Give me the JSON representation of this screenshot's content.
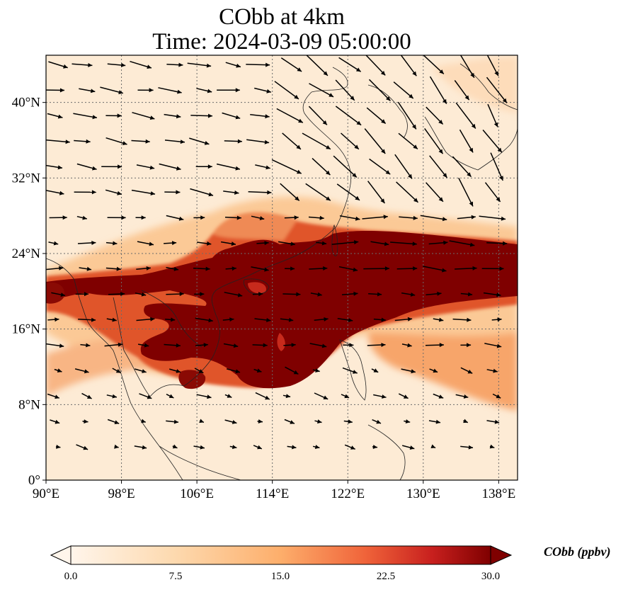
{
  "title": {
    "line1": "CObb at 4km",
    "line2": "Time: 2024-03-09 05:00:00"
  },
  "map": {
    "lon_range": [
      90,
      140
    ],
    "lat_range": [
      0,
      45
    ],
    "lon_ticks": [
      {
        "value": 90,
        "label": "90°E"
      },
      {
        "value": 98,
        "label": "98°E"
      },
      {
        "value": 106,
        "label": "106°E"
      },
      {
        "value": 114,
        "label": "114°E"
      },
      {
        "value": 122,
        "label": "122°E"
      },
      {
        "value": 130,
        "label": "130°E"
      },
      {
        "value": 138,
        "label": "138°E"
      }
    ],
    "lat_ticks": [
      {
        "value": 0,
        "label": "0°"
      },
      {
        "value": 8,
        "label": "8°N"
      },
      {
        "value": 16,
        "label": "16°N"
      },
      {
        "value": 24,
        "label": "24°N"
      },
      {
        "value": 32,
        "label": "32°N"
      },
      {
        "value": 40,
        "label": "40°N"
      }
    ],
    "gridlines": "dotted",
    "coastlines": true,
    "wind_vectors": true
  },
  "colorbar": {
    "title": "CObb (ppbv)",
    "min": 0,
    "max": 30,
    "extend": "both",
    "colormap": [
      "#fff5eb",
      "#fdd9ae",
      "#fdae6b",
      "#f0643a",
      "#c8201e",
      "#7f0000"
    ],
    "ticks": [
      "0.0",
      "7.5",
      "15.0",
      "22.5",
      "30.0"
    ]
  },
  "field": {
    "background": "#fdebd5",
    "plume_core": "#7f0000",
    "plume_edge": "#c9401e",
    "low_values": "#fee3c4"
  }
}
